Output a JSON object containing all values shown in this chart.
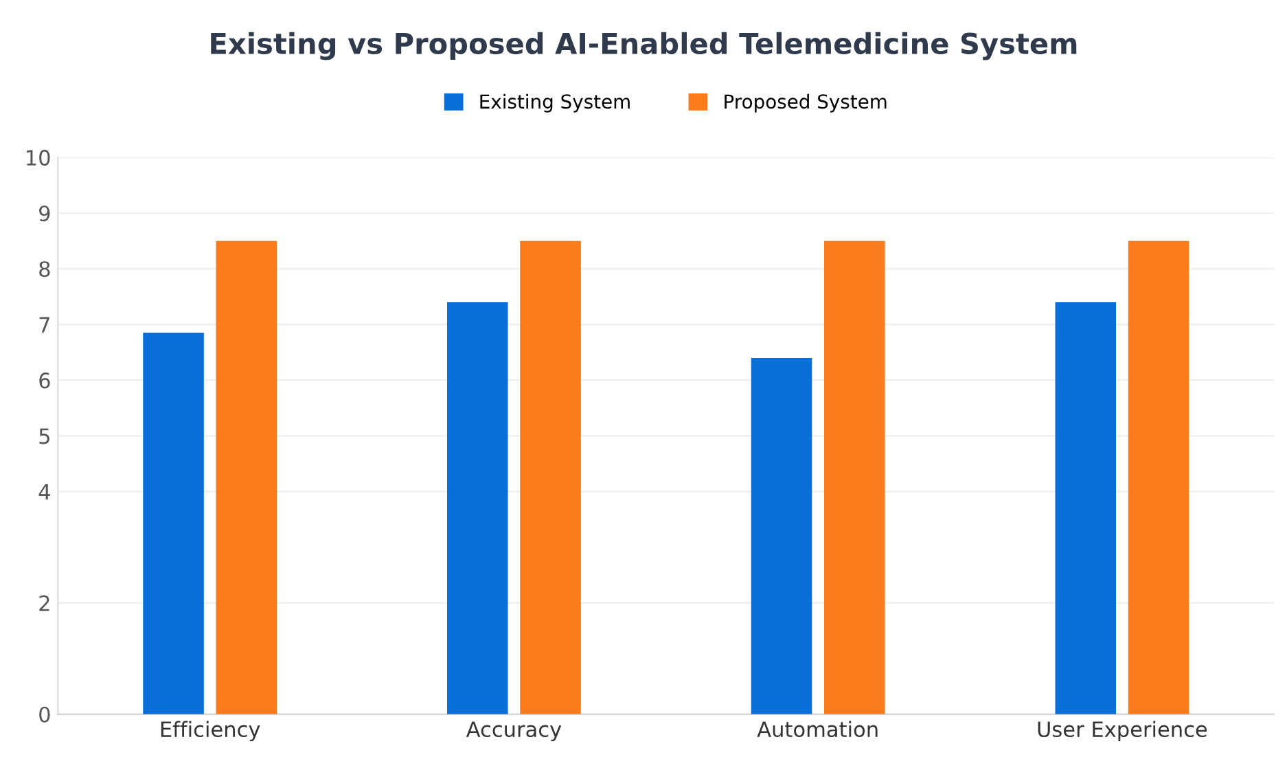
{
  "chart_data": {
    "type": "bar",
    "title": "Existing vs Proposed AI-Enabled Telemedicine System",
    "categories": [
      "Efficiency",
      "Accuracy",
      "Automation",
      "User Experience"
    ],
    "series": [
      {
        "name": "Existing System",
        "color": "#0a6fd8",
        "values": [
          6.85,
          7.4,
          6.4,
          7.4
        ]
      },
      {
        "name": "Proposed System",
        "color": "#f97b1c",
        "values": [
          8.5,
          8.5,
          8.5,
          8.5
        ]
      }
    ],
    "ylim": [
      0,
      10
    ],
    "yticks": [
      0,
      2,
      4,
      5,
      6,
      7,
      8,
      9,
      10
    ],
    "grid": "y",
    "legend": "top"
  }
}
